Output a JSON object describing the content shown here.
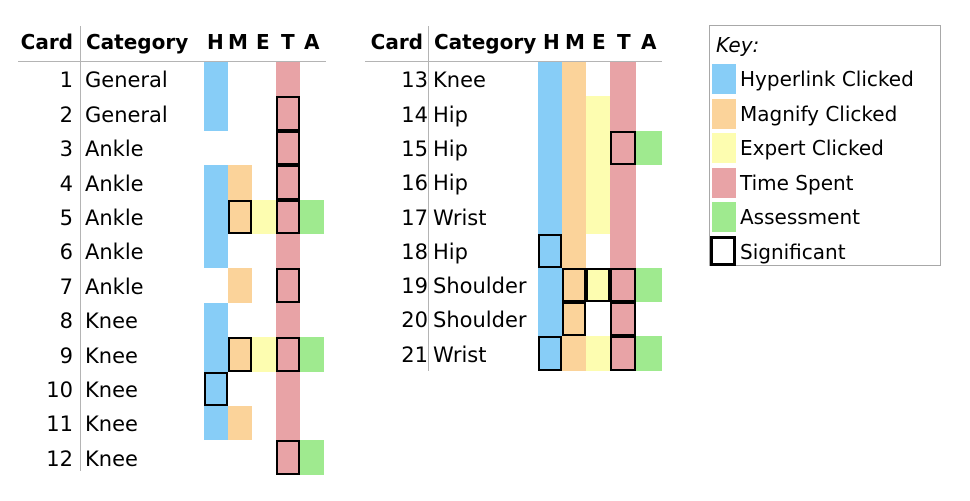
{
  "columns": {
    "card": "Card",
    "category": "Category",
    "codes": [
      "H",
      "M",
      "E",
      "T",
      "A"
    ]
  },
  "colors": {
    "H": "#87cdf7",
    "M": "#fbd39a",
    "E": "#fdfdb0",
    "T": "#e8a3a6",
    "A": "#9fea8f"
  },
  "tables": [
    {
      "rows": [
        {
          "card": "1",
          "category": "General",
          "H": {
            "on": true,
            "sig": false
          },
          "M": {
            "on": false,
            "sig": false
          },
          "E": {
            "on": false,
            "sig": false
          },
          "T": {
            "on": true,
            "sig": false
          },
          "A": {
            "on": false,
            "sig": false
          }
        },
        {
          "card": "2",
          "category": "General",
          "H": {
            "on": true,
            "sig": false
          },
          "M": {
            "on": false,
            "sig": false
          },
          "E": {
            "on": false,
            "sig": false
          },
          "T": {
            "on": true,
            "sig": true
          },
          "A": {
            "on": false,
            "sig": false
          }
        },
        {
          "card": "3",
          "category": "Ankle",
          "H": {
            "on": false,
            "sig": false
          },
          "M": {
            "on": false,
            "sig": false
          },
          "E": {
            "on": false,
            "sig": false
          },
          "T": {
            "on": true,
            "sig": true
          },
          "A": {
            "on": false,
            "sig": false
          }
        },
        {
          "card": "4",
          "category": "Ankle",
          "H": {
            "on": true,
            "sig": false
          },
          "M": {
            "on": true,
            "sig": false
          },
          "E": {
            "on": false,
            "sig": false
          },
          "T": {
            "on": true,
            "sig": true
          },
          "A": {
            "on": false,
            "sig": false
          }
        },
        {
          "card": "5",
          "category": "Ankle",
          "H": {
            "on": true,
            "sig": false
          },
          "M": {
            "on": true,
            "sig": true
          },
          "E": {
            "on": true,
            "sig": false
          },
          "T": {
            "on": true,
            "sig": true
          },
          "A": {
            "on": true,
            "sig": false
          }
        },
        {
          "card": "6",
          "category": "Ankle",
          "H": {
            "on": true,
            "sig": false
          },
          "M": {
            "on": false,
            "sig": false
          },
          "E": {
            "on": false,
            "sig": false
          },
          "T": {
            "on": true,
            "sig": false
          },
          "A": {
            "on": false,
            "sig": false
          }
        },
        {
          "card": "7",
          "category": "Ankle",
          "H": {
            "on": false,
            "sig": false
          },
          "M": {
            "on": true,
            "sig": false
          },
          "E": {
            "on": false,
            "sig": false
          },
          "T": {
            "on": true,
            "sig": true
          },
          "A": {
            "on": false,
            "sig": false
          }
        },
        {
          "card": "8",
          "category": "Knee",
          "H": {
            "on": true,
            "sig": false
          },
          "M": {
            "on": false,
            "sig": false
          },
          "E": {
            "on": false,
            "sig": false
          },
          "T": {
            "on": true,
            "sig": false
          },
          "A": {
            "on": false,
            "sig": false
          }
        },
        {
          "card": "9",
          "category": "Knee",
          "H": {
            "on": true,
            "sig": false
          },
          "M": {
            "on": true,
            "sig": true
          },
          "E": {
            "on": true,
            "sig": false
          },
          "T": {
            "on": true,
            "sig": true
          },
          "A": {
            "on": true,
            "sig": false
          }
        },
        {
          "card": "10",
          "category": "Knee",
          "H": {
            "on": true,
            "sig": true
          },
          "M": {
            "on": false,
            "sig": false
          },
          "E": {
            "on": false,
            "sig": false
          },
          "T": {
            "on": true,
            "sig": false
          },
          "A": {
            "on": false,
            "sig": false
          }
        },
        {
          "card": "11",
          "category": "Knee",
          "H": {
            "on": true,
            "sig": false
          },
          "M": {
            "on": true,
            "sig": false
          },
          "E": {
            "on": false,
            "sig": false
          },
          "T": {
            "on": true,
            "sig": false
          },
          "A": {
            "on": false,
            "sig": false
          }
        },
        {
          "card": "12",
          "category": "Knee",
          "H": {
            "on": false,
            "sig": false
          },
          "M": {
            "on": false,
            "sig": false
          },
          "E": {
            "on": false,
            "sig": false
          },
          "T": {
            "on": true,
            "sig": true
          },
          "A": {
            "on": true,
            "sig": false
          }
        }
      ]
    },
    {
      "rows": [
        {
          "card": "13",
          "category": "Knee",
          "H": {
            "on": true,
            "sig": false
          },
          "M": {
            "on": true,
            "sig": false
          },
          "E": {
            "on": false,
            "sig": false
          },
          "T": {
            "on": true,
            "sig": false
          },
          "A": {
            "on": false,
            "sig": false
          }
        },
        {
          "card": "14",
          "category": "Hip",
          "H": {
            "on": true,
            "sig": false
          },
          "M": {
            "on": true,
            "sig": false
          },
          "E": {
            "on": true,
            "sig": false
          },
          "T": {
            "on": true,
            "sig": false
          },
          "A": {
            "on": false,
            "sig": false
          }
        },
        {
          "card": "15",
          "category": "Hip",
          "H": {
            "on": true,
            "sig": false
          },
          "M": {
            "on": true,
            "sig": false
          },
          "E": {
            "on": true,
            "sig": false
          },
          "T": {
            "on": true,
            "sig": true
          },
          "A": {
            "on": true,
            "sig": false
          }
        },
        {
          "card": "16",
          "category": "Hip",
          "H": {
            "on": true,
            "sig": false
          },
          "M": {
            "on": true,
            "sig": false
          },
          "E": {
            "on": true,
            "sig": false
          },
          "T": {
            "on": true,
            "sig": false
          },
          "A": {
            "on": false,
            "sig": false
          }
        },
        {
          "card": "17",
          "category": "Wrist",
          "H": {
            "on": true,
            "sig": false
          },
          "M": {
            "on": true,
            "sig": false
          },
          "E": {
            "on": true,
            "sig": false
          },
          "T": {
            "on": true,
            "sig": false
          },
          "A": {
            "on": false,
            "sig": false
          }
        },
        {
          "card": "18",
          "category": "Hip",
          "H": {
            "on": true,
            "sig": true
          },
          "M": {
            "on": true,
            "sig": false
          },
          "E": {
            "on": false,
            "sig": false
          },
          "T": {
            "on": true,
            "sig": false
          },
          "A": {
            "on": false,
            "sig": false
          }
        },
        {
          "card": "19",
          "category": "Shoulder",
          "H": {
            "on": true,
            "sig": false
          },
          "M": {
            "on": true,
            "sig": true
          },
          "E": {
            "on": true,
            "sig": true
          },
          "T": {
            "on": true,
            "sig": true
          },
          "A": {
            "on": true,
            "sig": false
          }
        },
        {
          "card": "20",
          "category": "Shoulder",
          "H": {
            "on": true,
            "sig": false
          },
          "M": {
            "on": true,
            "sig": true
          },
          "E": {
            "on": false,
            "sig": false
          },
          "T": {
            "on": true,
            "sig": true
          },
          "A": {
            "on": false,
            "sig": false
          }
        },
        {
          "card": "21",
          "category": "Wrist",
          "H": {
            "on": true,
            "sig": true
          },
          "M": {
            "on": true,
            "sig": false
          },
          "E": {
            "on": true,
            "sig": false
          },
          "T": {
            "on": true,
            "sig": true
          },
          "A": {
            "on": true,
            "sig": false
          }
        }
      ]
    }
  ],
  "key": {
    "title": "Key:",
    "items": [
      {
        "code": "H",
        "label": "Hyperlink Clicked",
        "color": "#87cdf7"
      },
      {
        "code": "M",
        "label": "Magnify Clicked",
        "color": "#fbd39a"
      },
      {
        "code": "E",
        "label": "Expert Clicked",
        "color": "#fdfdb0"
      },
      {
        "code": "T",
        "label": "Time Spent",
        "color": "#e8a3a6"
      },
      {
        "code": "A",
        "label": "Assessment",
        "color": "#9fea8f"
      }
    ],
    "significant_label": "Significant"
  }
}
